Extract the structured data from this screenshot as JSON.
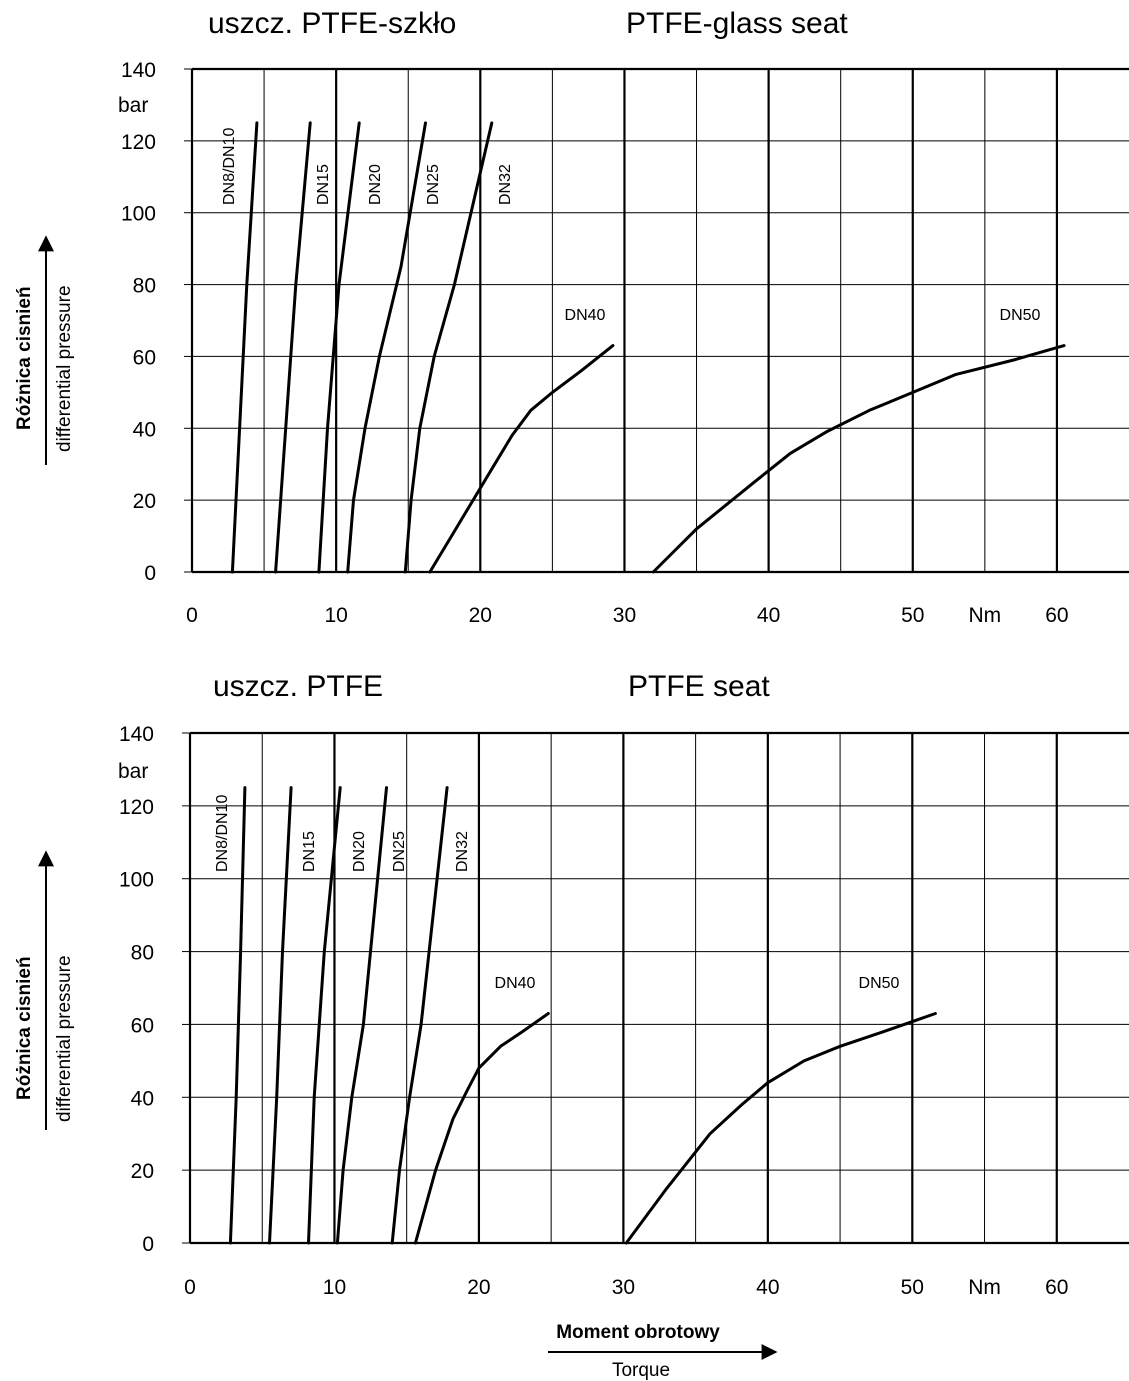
{
  "chart_data": [
    {
      "type": "line",
      "title_pl": "uszcz. PTFE-szkło",
      "title_en": "PTFE-glass seat",
      "ylabel_pl": "Różnica cisnień",
      "ylabel_en": "differential pressure",
      "y_unit": "bar",
      "x_unit": "Nm",
      "xlim": [
        0,
        65
      ],
      "ylim": [
        0,
        140
      ],
      "x_ticks": [
        "0",
        "10",
        "20",
        "30",
        "40",
        "50",
        "Nm",
        "60"
      ],
      "y_ticks": [
        "0",
        "20",
        "40",
        "60",
        "80",
        "100",
        "120",
        "140"
      ],
      "grid": true,
      "series": [
        {
          "name": "DN8/DN10",
          "x": [
            2.8,
            3.3,
            3.8,
            4.5
          ],
          "y": [
            0,
            40,
            80,
            125
          ]
        },
        {
          "name": "DN15",
          "x": [
            5.8,
            6.5,
            7.2,
            8.2
          ],
          "y": [
            0,
            40,
            80,
            125
          ]
        },
        {
          "name": "DN20",
          "x": [
            8.8,
            9.4,
            10.2,
            11.6
          ],
          "y": [
            0,
            40,
            80,
            125
          ]
        },
        {
          "name": "DN25",
          "x": [
            10.8,
            11.2,
            12,
            13,
            14.5,
            16.2
          ],
          "y": [
            0,
            20,
            40,
            60,
            85,
            125
          ]
        },
        {
          "name": "DN32",
          "x": [
            14.8,
            15.2,
            15.8,
            16.8,
            18.2,
            20.8
          ],
          "y": [
            0,
            20,
            40,
            60,
            80,
            125
          ]
        },
        {
          "name": "DN40",
          "x": [
            16.5,
            18,
            19.5,
            21,
            22.2,
            23.5,
            25,
            27,
            29.2
          ],
          "y": [
            0,
            10,
            20,
            30,
            38,
            45,
            50,
            56,
            63
          ]
        },
        {
          "name": "DN50",
          "x": [
            32,
            35,
            39,
            41.5,
            44,
            47,
            50,
            53,
            57,
            60.5
          ],
          "y": [
            0,
            12,
            25,
            33,
            39,
            45,
            50,
            55,
            59,
            63
          ]
        }
      ],
      "labels": {
        "DN40": "DN40",
        "DN50": "DN50"
      }
    },
    {
      "type": "line",
      "title_pl": "uszcz. PTFE",
      "title_en": "PTFE seat",
      "ylabel_pl": "Różnica cisnień",
      "ylabel_en": "differential pressure",
      "y_unit": "bar",
      "x_unit": "Nm",
      "xlim": [
        0,
        65
      ],
      "ylim": [
        0,
        140
      ],
      "x_ticks": [
        "0",
        "10",
        "20",
        "30",
        "40",
        "50",
        "Nm",
        "60"
      ],
      "y_ticks": [
        "0",
        "20",
        "40",
        "60",
        "80",
        "100",
        "120",
        "140"
      ],
      "grid": true,
      "series": [
        {
          "name": "DN8/DN10",
          "x": [
            2.8,
            3.2,
            3.5,
            3.8
          ],
          "y": [
            0,
            40,
            80,
            125
          ]
        },
        {
          "name": "DN15",
          "x": [
            5.5,
            6,
            6.4,
            7
          ],
          "y": [
            0,
            40,
            80,
            125
          ]
        },
        {
          "name": "DN20",
          "x": [
            8.2,
            8.6,
            9.3,
            10.4
          ],
          "y": [
            0,
            40,
            80,
            125
          ]
        },
        {
          "name": "DN25",
          "x": [
            10.2,
            10.6,
            11.2,
            12,
            13.6
          ],
          "y": [
            0,
            20,
            40,
            60,
            125
          ]
        },
        {
          "name": "DN32",
          "x": [
            14,
            14.5,
            15.2,
            16,
            17.8
          ],
          "y": [
            0,
            20,
            40,
            60,
            125
          ]
        },
        {
          "name": "DN40",
          "x": [
            15.6,
            17,
            18.2,
            19.2,
            20,
            21.5,
            23,
            24.8
          ],
          "y": [
            0,
            20,
            34,
            42,
            48,
            54,
            58,
            63
          ]
        },
        {
          "name": "DN50",
          "x": [
            30.2,
            33,
            36,
            38.2,
            40,
            42.5,
            45,
            48,
            51.6
          ],
          "y": [
            0,
            15,
            30,
            38,
            44,
            50,
            54,
            58,
            63
          ]
        }
      ],
      "labels": {
        "DN40": "DN40",
        "DN50": "DN50"
      }
    }
  ],
  "x_axis_title": {
    "pl": "Moment obrotowy",
    "en": "Torque"
  }
}
